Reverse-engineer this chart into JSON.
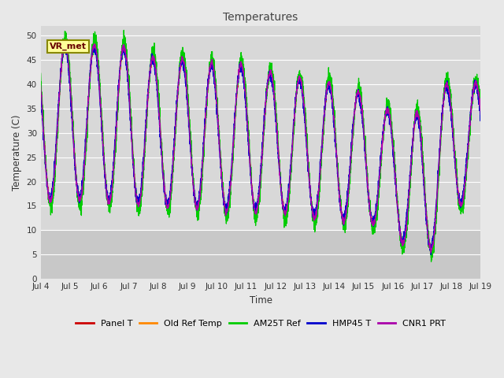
{
  "title": "Temperatures",
  "xlabel": "Time",
  "ylabel": "Temperature (C)",
  "ylim": [
    0,
    52
  ],
  "yticks": [
    0,
    5,
    10,
    15,
    20,
    25,
    30,
    35,
    40,
    45,
    50
  ],
  "xtick_labels": [
    "Jul 4",
    "Jul 5",
    "Jul 6",
    "Jul 7",
    "Jul 8",
    "Jul 9",
    "Jul 10",
    "Jul 11",
    "Jul 12",
    "Jul 13",
    "Jul 14",
    "Jul 15",
    "Jul 16",
    "Jul 17",
    "Jul 18",
    "Jul 19"
  ],
  "legend_entries": [
    "Panel T",
    "Old Ref Temp",
    "AM25T Ref",
    "HMP45 T",
    "CNR1 PRT"
  ],
  "line_colors": [
    "#cc0000",
    "#ff8800",
    "#00cc00",
    "#0000cc",
    "#aa00aa"
  ],
  "annotation_text": "VR_met",
  "bg_color": "#e8e8e8",
  "plot_bg_color": "#d8d8d8",
  "plot_bg_lower_color": "#c8c8c8",
  "lower_band_threshold": 10,
  "grid_color": "#ffffff",
  "title_color": "#444444",
  "n_days": 15,
  "samples_per_day": 240
}
